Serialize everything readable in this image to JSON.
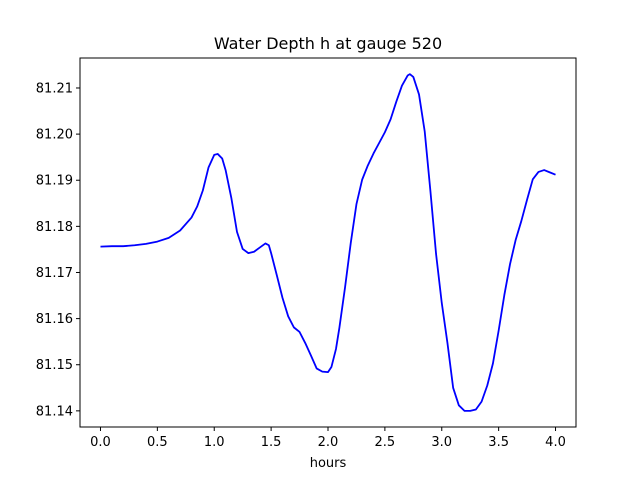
{
  "chart_data": {
    "type": "line",
    "title": "Water Depth h at gauge 520",
    "xlabel": "hours",
    "ylabel": "",
    "xlim": [
      -0.18,
      4.18
    ],
    "ylim": [
      81.1365,
      81.2165
    ],
    "xticks": [
      0.0,
      0.5,
      1.0,
      1.5,
      2.0,
      2.5,
      3.0,
      3.5,
      4.0
    ],
    "xtick_labels": [
      "0.0",
      "0.5",
      "1.0",
      "1.5",
      "2.0",
      "2.5",
      "3.0",
      "3.5",
      "4.0"
    ],
    "yticks": [
      81.14,
      81.15,
      81.16,
      81.17,
      81.18,
      81.19,
      81.2,
      81.21
    ],
    "ytick_labels": [
      "81.14",
      "81.15",
      "81.16",
      "81.17",
      "81.18",
      "81.19",
      "81.20",
      "81.21"
    ],
    "grid": false,
    "series": [
      {
        "color": "#0000ff",
        "x": [
          0.0,
          0.1,
          0.2,
          0.3,
          0.4,
          0.5,
          0.6,
          0.7,
          0.8,
          0.85,
          0.9,
          0.95,
          1.0,
          1.03,
          1.07,
          1.1,
          1.15,
          1.2,
          1.25,
          1.3,
          1.35,
          1.4,
          1.45,
          1.48,
          1.5,
          1.55,
          1.6,
          1.65,
          1.7,
          1.75,
          1.8,
          1.85,
          1.9,
          1.95,
          2.0,
          2.03,
          2.07,
          2.1,
          2.15,
          2.2,
          2.25,
          2.3,
          2.35,
          2.4,
          2.45,
          2.5,
          2.55,
          2.6,
          2.65,
          2.7,
          2.72,
          2.75,
          2.8,
          2.85,
          2.9,
          2.95,
          3.0,
          3.05,
          3.1,
          3.15,
          3.2,
          3.25,
          3.3,
          3.35,
          3.4,
          3.45,
          3.5,
          3.55,
          3.6,
          3.65,
          3.7,
          3.75,
          3.8,
          3.85,
          3.9,
          3.95,
          4.0
        ],
        "y": [
          81.1756,
          81.1757,
          81.1757,
          81.1759,
          81.1762,
          81.1767,
          81.1775,
          81.1791,
          81.1819,
          81.1843,
          81.1878,
          81.1928,
          81.1955,
          81.1957,
          81.1947,
          81.1922,
          81.1862,
          81.1788,
          81.1751,
          81.1742,
          81.1745,
          81.1754,
          81.1763,
          81.1759,
          81.1742,
          81.1694,
          81.1645,
          81.1605,
          81.1581,
          81.1571,
          81.1547,
          81.152,
          81.1492,
          81.1485,
          81.1484,
          81.1495,
          81.1534,
          81.158,
          81.1668,
          81.1764,
          81.1848,
          81.1901,
          81.1932,
          81.1958,
          81.1981,
          81.2004,
          81.2032,
          81.207,
          81.2105,
          81.2127,
          81.213,
          81.2124,
          81.2086,
          81.2006,
          81.1877,
          81.174,
          81.1634,
          81.1547,
          81.145,
          81.1412,
          81.14,
          81.14,
          81.1403,
          81.142,
          81.1455,
          81.1503,
          81.1574,
          81.1651,
          81.1718,
          81.1771,
          81.1812,
          81.1858,
          81.1902,
          81.1918,
          81.1922,
          81.1917,
          81.1912
        ]
      }
    ]
  }
}
